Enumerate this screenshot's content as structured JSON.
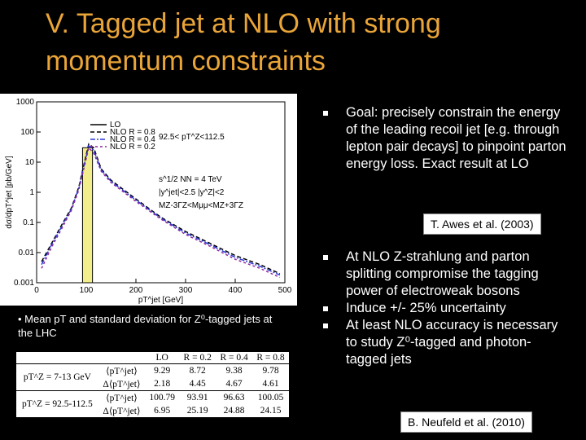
{
  "header": {
    "title": "V. Tagged jet at NLO with strong momentum constraints"
  },
  "chart_data": {
    "type": "line",
    "x_label": "pT^jet [GeV]",
    "y_label": "dσ/dpT^jet [pb/GeV]",
    "log_y": true,
    "xlim": [
      0,
      500
    ],
    "xticks": [
      0,
      100,
      200,
      300,
      400,
      500
    ],
    "ylim": [
      0.001,
      1000
    ],
    "yticks": [
      0.001,
      0.01,
      0.1,
      1,
      10,
      100,
      1000
    ],
    "legend": "upper left",
    "annotations": [
      "92.5< pT^Z<112.5",
      "s^1/2 NN = 4 TeV",
      "|y^jet|<2.5 |y^Z|<2",
      "MZ-3ΓZ<Mμμ<MZ+3ΓZ"
    ],
    "series": [
      {
        "name": "LO",
        "color": "#000000",
        "fill": "#f2ee8c",
        "x": [
          92.5,
          112.5
        ],
        "values": [
          30,
          30
        ]
      },
      {
        "name": "NLO R = 0.8",
        "color": "#000000",
        "x": [
          10,
          30,
          50,
          70,
          85,
          95,
          105,
          115,
          130,
          150,
          200,
          250,
          300,
          350,
          400,
          450,
          490
        ],
        "values": [
          0.005,
          0.02,
          0.08,
          0.3,
          1.5,
          8,
          40,
          30,
          6,
          2.5,
          0.6,
          0.15,
          0.05,
          0.02,
          0.008,
          0.004,
          0.002
        ]
      },
      {
        "name": "NLO R = 0.4",
        "color": "#2b3ad6",
        "x": [
          10,
          30,
          50,
          70,
          85,
          95,
          105,
          115,
          130,
          150,
          200,
          250,
          300,
          350,
          400,
          450,
          490
        ],
        "values": [
          0.004,
          0.018,
          0.07,
          0.28,
          1.4,
          7,
          35,
          25,
          5.5,
          2.3,
          0.55,
          0.14,
          0.045,
          0.018,
          0.007,
          0.0035,
          0.0018
        ]
      },
      {
        "name": "NLO R = 0.2",
        "color": "#8a2a9e",
        "x": [
          10,
          30,
          50,
          70,
          85,
          95,
          105,
          115,
          130,
          150,
          200,
          250,
          300,
          350,
          400,
          450,
          490
        ],
        "values": [
          0.003,
          0.015,
          0.06,
          0.25,
          1.2,
          6,
          30,
          20,
          5,
          2.1,
          0.5,
          0.13,
          0.04,
          0.016,
          0.006,
          0.003,
          0.0015
        ]
      }
    ]
  },
  "caption": "Mean pT and standard deviation for Z⁰-tagged jets at the LHC",
  "table": {
    "columns": [
      "LO",
      "R = 0.2",
      "R = 0.4",
      "R = 0.8"
    ],
    "groups": [
      {
        "label": "pT^Z = 7-13 GeV",
        "rows": [
          {
            "quantity": "⟨pT^jet⟩",
            "values": [
              "9.29",
              "8.72",
              "9.38",
              "9.78"
            ]
          },
          {
            "quantity": "Δ⟨pT^jet⟩",
            "values": [
              "2.18",
              "4.45",
              "4.67",
              "4.61"
            ]
          }
        ]
      },
      {
        "label": "pT^Z = 92.5-112.5",
        "rows": [
          {
            "quantity": "⟨pT^jet⟩",
            "values": [
              "100.79",
              "93.91",
              "96.63",
              "100.05"
            ]
          },
          {
            "quantity": "Δ⟨pT^jet⟩",
            "values": [
              "6.95",
              "25.19",
              "24.88",
              "24.15"
            ]
          }
        ]
      }
    ]
  },
  "bullets_top": [
    "Goal: precisely constrain the energy of the leading recoil jet [e.g. through lepton pair decays] to pinpoint parton energy loss. Exact result at LO"
  ],
  "citation_top": "T. Awes et al. (2003)",
  "bullets_bottom": [
    "At NLO Z-strahlung and parton splitting compromise the tagging power of electroweak bosons",
    "Induce +/- 25% uncertainty",
    "At least NLO accuracy is necessary to study Z⁰-tagged and photon-tagged jets"
  ],
  "citation_bottom": "B. Neufeld et al. (2010)"
}
